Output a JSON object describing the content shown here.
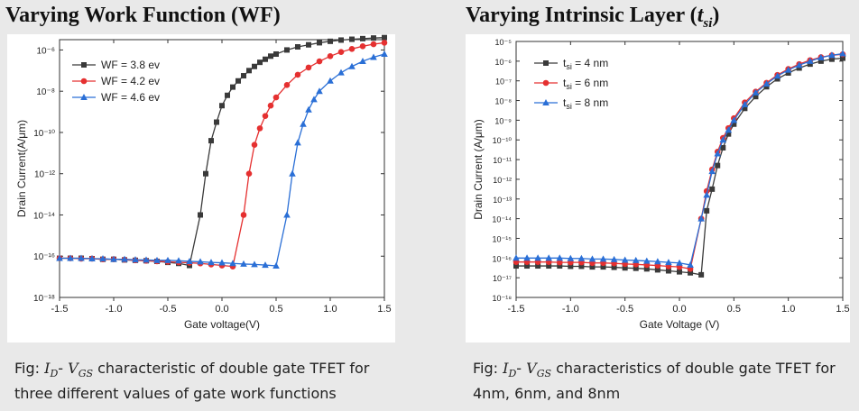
{
  "left": {
    "heading": "Varying Work Function (WF)",
    "caption_prefix": "Fig: ",
    "caption_text": " characteristic of double gate TFET for three different values of gate work functions"
  },
  "right": {
    "heading_main": "Varying Intrinsic Layer (",
    "heading_sym": "t",
    "heading_sub": "si",
    "heading_end": ")",
    "caption_prefix": "Fig: ",
    "caption_text": " characteristics of double gate TFET for 4nm, 6nm, and 8nm"
  },
  "caption_symbols": {
    "id": "I",
    "id_sub": "D",
    "dash": "- ",
    "vgs": "V",
    "vgs_sub": "GS"
  },
  "colors": {
    "black": "#3a3a3a",
    "red": "#e53030",
    "blue": "#2a6fd6"
  },
  "chart_data": [
    {
      "type": "line",
      "xlabel": "Gate voltage(V)",
      "ylabel": "Drain Current(A/μm)",
      "xlim": [
        -1.5,
        1.5
      ],
      "ylim_log10": [
        -18,
        -5.5
      ],
      "y_scale": "log",
      "xticks": [
        -1.5,
        -1.0,
        -0.5,
        0.0,
        0.5,
        1.0,
        1.5
      ],
      "xtick_labels": [
        "-1.5",
        "-1.0",
        "-0.5",
        "0.0",
        "0.5",
        "1.0",
        "1.5"
      ],
      "yticks_exp": [
        -18,
        -16,
        -14,
        -12,
        -10,
        -8,
        -6
      ],
      "legend": "top-left",
      "series": [
        {
          "name": "WF = 3.8 ev",
          "color": "#3a3a3a",
          "marker": "square",
          "x": [
            -1.5,
            -1.4,
            -1.3,
            -1.2,
            -1.1,
            -1.0,
            -0.9,
            -0.8,
            -0.7,
            -0.6,
            -0.5,
            -0.4,
            -0.3,
            -0.2,
            -0.15,
            -0.1,
            -0.05,
            0.0,
            0.05,
            0.1,
            0.15,
            0.2,
            0.25,
            0.3,
            0.35,
            0.4,
            0.45,
            0.5,
            0.6,
            0.7,
            0.8,
            0.9,
            1.0,
            1.1,
            1.2,
            1.3,
            1.4,
            1.5
          ],
          "y_exp": [
            -16.1,
            -16.1,
            -16.1,
            -16.12,
            -16.15,
            -16.15,
            -16.18,
            -16.2,
            -16.22,
            -16.25,
            -16.3,
            -16.35,
            -16.45,
            -14.0,
            -12.0,
            -10.4,
            -9.5,
            -8.7,
            -8.2,
            -7.8,
            -7.5,
            -7.25,
            -7.0,
            -6.8,
            -6.6,
            -6.45,
            -6.3,
            -6.2,
            -6.0,
            -5.85,
            -5.75,
            -5.65,
            -5.58,
            -5.52,
            -5.48,
            -5.45,
            -5.42,
            -5.4
          ]
        },
        {
          "name": "WF = 4.2 ev",
          "color": "#e53030",
          "marker": "circle",
          "x": [
            -1.5,
            -1.4,
            -1.3,
            -1.2,
            -1.1,
            -1.0,
            -0.9,
            -0.8,
            -0.7,
            -0.6,
            -0.5,
            -0.4,
            -0.3,
            -0.2,
            -0.1,
            0.0,
            0.1,
            0.2,
            0.25,
            0.3,
            0.35,
            0.4,
            0.45,
            0.5,
            0.6,
            0.7,
            0.8,
            0.9,
            1.0,
            1.1,
            1.2,
            1.3,
            1.4,
            1.5
          ],
          "y_exp": [
            -16.1,
            -16.1,
            -16.12,
            -16.12,
            -16.15,
            -16.15,
            -16.17,
            -16.2,
            -16.22,
            -16.25,
            -16.27,
            -16.3,
            -16.32,
            -16.35,
            -16.4,
            -16.45,
            -16.5,
            -14.0,
            -12.0,
            -10.6,
            -9.8,
            -9.2,
            -8.7,
            -8.3,
            -7.7,
            -7.2,
            -6.85,
            -6.55,
            -6.3,
            -6.1,
            -5.95,
            -5.82,
            -5.72,
            -5.65
          ]
        },
        {
          "name": "WF = 4.6 ev",
          "color": "#2a6fd6",
          "marker": "triangle",
          "x": [
            -1.5,
            -1.4,
            -1.3,
            -1.2,
            -1.1,
            -1.0,
            -0.9,
            -0.8,
            -0.7,
            -0.6,
            -0.5,
            -0.4,
            -0.3,
            -0.2,
            -0.1,
            0.0,
            0.1,
            0.2,
            0.3,
            0.4,
            0.5,
            0.6,
            0.65,
            0.7,
            0.75,
            0.8,
            0.85,
            0.9,
            1.0,
            1.1,
            1.2,
            1.3,
            1.4,
            1.5
          ],
          "y_exp": [
            -16.1,
            -16.1,
            -16.1,
            -16.12,
            -16.12,
            -16.15,
            -16.15,
            -16.17,
            -16.18,
            -16.2,
            -16.2,
            -16.22,
            -16.25,
            -16.27,
            -16.3,
            -16.32,
            -16.35,
            -16.38,
            -16.4,
            -16.43,
            -16.47,
            -14.0,
            -12.0,
            -10.5,
            -9.6,
            -8.9,
            -8.4,
            -8.0,
            -7.5,
            -7.1,
            -6.8,
            -6.55,
            -6.35,
            -6.2
          ]
        }
      ]
    },
    {
      "type": "line",
      "xlabel": "Gate Voltage (V)",
      "ylabel": "Drain Current (A/μm)",
      "xlim": [
        -1.5,
        1.5
      ],
      "ylim_log10": [
        -18,
        -5
      ],
      "y_scale": "log",
      "xticks": [
        -1.5,
        -1.0,
        -0.5,
        0.0,
        0.5,
        1.0,
        1.5
      ],
      "xtick_labels": [
        "-1.5",
        "-1.0",
        "-0.5",
        "0.0",
        "0.5",
        "1.0",
        "1.5"
      ],
      "yticks_exp": [
        -18,
        -17,
        -16,
        -15,
        -14,
        -13,
        -12,
        -11,
        -10,
        -9,
        -8,
        -7,
        -6,
        -5
      ],
      "legend": "top-left",
      "series": [
        {
          "name": "t_si = 4 nm",
          "label_t": "t",
          "label_sub": "si",
          "label_rest": " = 4 nm",
          "color": "#3a3a3a",
          "marker": "square",
          "x": [
            -1.5,
            -1.4,
            -1.3,
            -1.2,
            -1.1,
            -1.0,
            -0.9,
            -0.8,
            -0.7,
            -0.6,
            -0.5,
            -0.4,
            -0.3,
            -0.2,
            -0.1,
            0.0,
            0.1,
            0.2,
            0.25,
            0.3,
            0.35,
            0.4,
            0.45,
            0.5,
            0.6,
            0.7,
            0.8,
            0.9,
            1.0,
            1.1,
            1.2,
            1.3,
            1.4,
            1.5
          ],
          "y_exp": [
            -16.4,
            -16.4,
            -16.4,
            -16.4,
            -16.4,
            -16.42,
            -16.42,
            -16.45,
            -16.45,
            -16.47,
            -16.5,
            -16.52,
            -16.55,
            -16.6,
            -16.65,
            -16.7,
            -16.75,
            -16.85,
            -13.6,
            -12.5,
            -11.3,
            -10.4,
            -9.7,
            -9.2,
            -8.4,
            -7.8,
            -7.3,
            -6.9,
            -6.6,
            -6.35,
            -6.15,
            -6.0,
            -5.9,
            -5.85
          ]
        },
        {
          "name": "t_si = 6 nm",
          "label_t": "t",
          "label_sub": "si",
          "label_rest": " = 6 nm",
          "color": "#e53030",
          "marker": "circle",
          "x": [
            -1.5,
            -1.4,
            -1.3,
            -1.2,
            -1.1,
            -1.0,
            -0.9,
            -0.8,
            -0.7,
            -0.6,
            -0.5,
            -0.4,
            -0.3,
            -0.2,
            -0.1,
            0.0,
            0.1,
            0.2,
            0.25,
            0.3,
            0.35,
            0.4,
            0.45,
            0.5,
            0.6,
            0.7,
            0.8,
            0.9,
            1.0,
            1.1,
            1.2,
            1.3,
            1.4,
            1.5
          ],
          "y_exp": [
            -16.2,
            -16.2,
            -16.2,
            -16.2,
            -16.22,
            -16.22,
            -16.22,
            -16.25,
            -16.25,
            -16.27,
            -16.3,
            -16.32,
            -16.35,
            -16.38,
            -16.42,
            -16.45,
            -16.55,
            -14.0,
            -12.6,
            -11.5,
            -10.6,
            -9.9,
            -9.4,
            -8.9,
            -8.1,
            -7.55,
            -7.1,
            -6.7,
            -6.4,
            -6.15,
            -5.95,
            -5.8,
            -5.7,
            -5.65
          ]
        },
        {
          "name": "t_si = 8 nm",
          "label_t": "t",
          "label_sub": "si",
          "label_rest": " = 8 nm",
          "color": "#2a6fd6",
          "marker": "triangle",
          "x": [
            -1.5,
            -1.4,
            -1.3,
            -1.2,
            -1.1,
            -1.0,
            -0.9,
            -0.8,
            -0.7,
            -0.6,
            -0.5,
            -0.4,
            -0.3,
            -0.2,
            -0.1,
            0.0,
            0.1,
            0.2,
            0.25,
            0.3,
            0.35,
            0.4,
            0.45,
            0.5,
            0.6,
            0.7,
            0.8,
            0.9,
            1.0,
            1.1,
            1.2,
            1.3,
            1.4,
            1.5
          ],
          "y_exp": [
            -16.0,
            -16.0,
            -16.0,
            -16.0,
            -16.0,
            -16.02,
            -16.02,
            -16.05,
            -16.05,
            -16.07,
            -16.1,
            -16.12,
            -16.15,
            -16.18,
            -16.22,
            -16.25,
            -16.35,
            -14.0,
            -12.8,
            -11.6,
            -10.7,
            -10.0,
            -9.5,
            -9.0,
            -8.2,
            -7.6,
            -7.15,
            -6.75,
            -6.45,
            -6.2,
            -6.0,
            -5.82,
            -5.7,
            -5.62
          ]
        }
      ]
    }
  ]
}
